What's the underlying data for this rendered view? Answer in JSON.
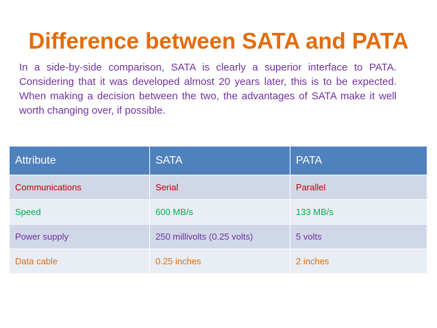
{
  "slide": {
    "title": "Difference between SATA and PATA",
    "intro": "In a side-by-side comparison, SATA is clearly a superior interface to PATA. Considering that it was developed almost 20 years later, this is to be expected. When making a decision between the two, the advantages of SATA make it well worth changing over, if possible."
  },
  "table": {
    "headers": [
      "Attribute",
      "SATA",
      "PATA"
    ],
    "rows": [
      {
        "attribute": "Communications",
        "sata": "Serial",
        "pata": "Parallel"
      },
      {
        "attribute": "Speed",
        "sata": "600 MB/s",
        "pata": "133 MB/s"
      },
      {
        "attribute": "Power supply",
        "sata": "250 millivolts (0.25 volts)",
        "pata": "5 volts"
      },
      {
        "attribute": "Data cable",
        "sata": "0.25 inches",
        "pata": "2 inches"
      }
    ]
  },
  "colors": {
    "title": "#E36C0A",
    "intro_text": "#7030A0",
    "header_bg": "#4F81BD",
    "row_dark_bg": "#D0D8E8",
    "row_light_bg": "#E9EDF4",
    "row_text": [
      "#C00000",
      "#00B050",
      "#7030A0",
      "#E36C0A"
    ]
  }
}
